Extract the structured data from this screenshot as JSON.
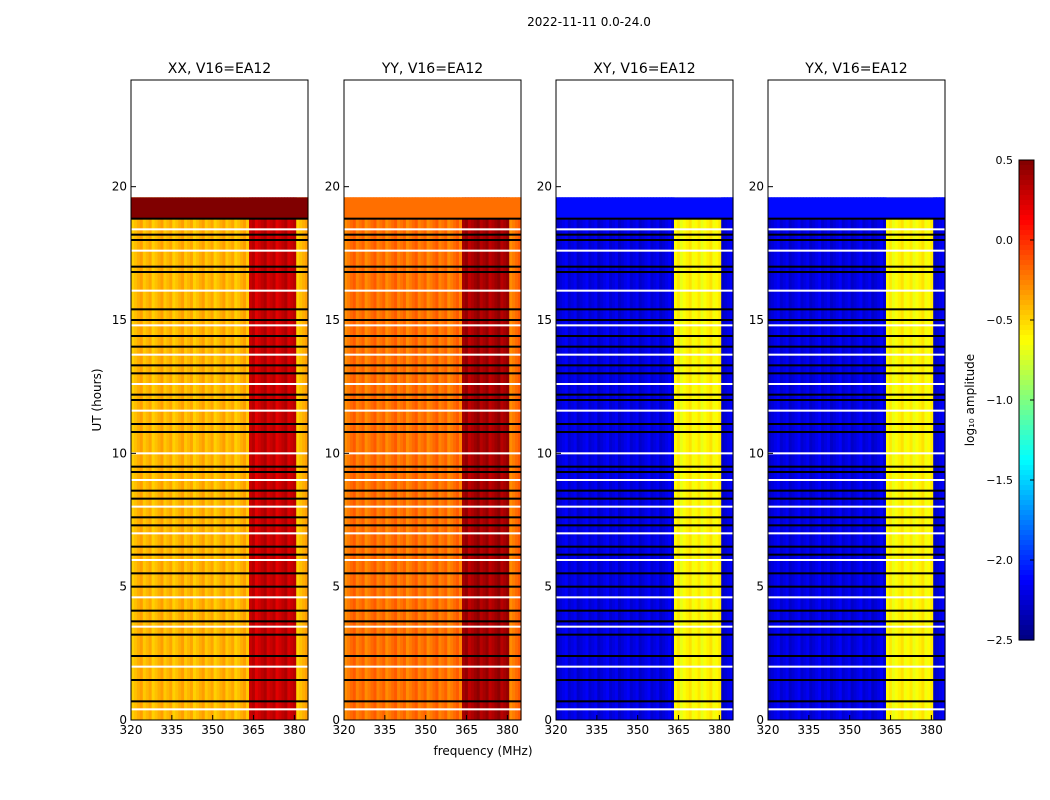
{
  "figure": {
    "suptitle": "2022-11-11 0.0-24.0",
    "xlabel": "frequency (MHz)",
    "ylabel": "UT (hours)"
  },
  "chart_data": {
    "type": "heatmap",
    "title": "2022-11-11 0.0-24.0",
    "xlabel": "frequency (MHz)",
    "ylabel": "UT (hours)",
    "xlim": [
      320,
      385
    ],
    "ylim": [
      0,
      24
    ],
    "xticks": [
      320,
      335,
      350,
      365,
      380
    ],
    "yticks": [
      0,
      5,
      10,
      15,
      20
    ],
    "data_end_hour": 19.6,
    "rfi_band_mhz": [
      362.5,
      380
    ],
    "panels": [
      {
        "title": "XX, V16=EA12",
        "polarization": "XX",
        "typical_log10_amplitude": -0.4,
        "band_log10_amplitude": 0.3,
        "top_block_log10_amplitude": 0.5
      },
      {
        "title": "YY, V16=EA12",
        "polarization": "YY",
        "typical_log10_amplitude": -0.2,
        "band_log10_amplitude": 0.4,
        "top_block_log10_amplitude": -0.2
      },
      {
        "title": "XY, V16=EA12",
        "polarization": "XY",
        "typical_log10_amplitude": -2.2,
        "band_log10_amplitude": -0.6,
        "top_block_log10_amplitude": -2.1
      },
      {
        "title": "YX, V16=EA12",
        "polarization": "YX",
        "typical_log10_amplitude": -2.2,
        "band_log10_amplitude": -0.6,
        "top_block_log10_amplitude": -2.1
      }
    ],
    "flagged_hours": [
      0.4,
      0.7,
      1.5,
      2.0,
      2.4,
      3.2,
      3.5,
      3.7,
      4.1,
      4.6,
      5.0,
      5.5,
      6.0,
      6.2,
      6.5,
      7.0,
      7.3,
      7.6,
      8.0,
      8.3,
      8.6,
      9.0,
      9.3,
      9.5,
      10.0,
      10.8,
      11.1,
      11.6,
      12.0,
      12.2,
      12.6,
      13.0,
      13.3,
      13.7,
      14.0,
      14.4,
      14.8,
      15.0,
      15.4,
      16.1,
      16.8,
      17.0,
      17.6,
      18.0,
      18.2,
      18.4,
      18.8
    ],
    "colorbar": {
      "label": "log₁₀ amplitude",
      "colormap": "jet",
      "range": [
        -2.5,
        0.5
      ],
      "ticks": [
        "0.5",
        "0.0",
        "−0.5",
        "−1.0",
        "−1.5",
        "−2.0",
        "−2.5"
      ],
      "tick_values": [
        0.5,
        0.0,
        -0.5,
        -1.0,
        -1.5,
        -2.0,
        -2.5
      ]
    }
  }
}
